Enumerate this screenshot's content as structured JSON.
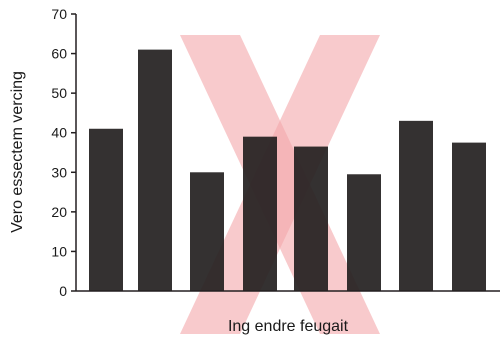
{
  "chart_data": {
    "type": "bar",
    "title": "",
    "xlabel": "Ing endre feugait",
    "ylabel": "Vero essectem vercing",
    "ylim": [
      0,
      70
    ],
    "yticks": [
      0,
      10,
      20,
      30,
      40,
      50,
      60,
      70
    ],
    "categories": [
      "",
      "",
      "",
      "",
      "",
      "",
      "",
      ""
    ],
    "values": [
      41,
      61,
      30,
      39,
      36.5,
      29.5,
      43,
      37.5
    ],
    "bar_color": "#231f20",
    "grid": false,
    "legend": "none",
    "overlay": {
      "shape": "X",
      "color": "#f4a7aa"
    }
  }
}
